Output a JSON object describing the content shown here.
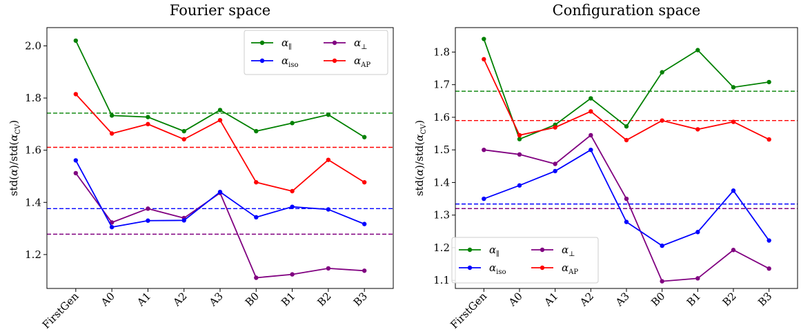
{
  "chart_data": [
    {
      "type": "line",
      "title": "Fourier space",
      "ylabel": "std(α)/std(α_CV)",
      "xlabel": "",
      "categories": [
        "FirstGen",
        "A0",
        "A1",
        "A2",
        "A3",
        "B0",
        "B1",
        "B2",
        "B3"
      ],
      "ylim": [
        1.07,
        2.07
      ],
      "yticks": [
        "1.2",
        "1.4",
        "1.6",
        "1.8",
        "2.0"
      ],
      "legend_position": "top-right",
      "grid": false,
      "series": [
        {
          "name": "α_∥",
          "name_main": "α",
          "name_sub": "∥",
          "color": "#008000",
          "values": [
            2.02,
            1.733,
            1.727,
            1.673,
            1.754,
            1.673,
            1.704,
            1.736,
            1.65
          ],
          "reference": 1.742
        },
        {
          "name": "α_⊥",
          "name_main": "α",
          "name_sub": "⊥",
          "color": "#800080",
          "values": [
            1.512,
            1.323,
            1.376,
            1.34,
            1.436,
            1.111,
            1.124,
            1.147,
            1.138
          ],
          "reference": 1.278
        },
        {
          "name": "α_iso",
          "name_main": "α",
          "name_sub": "iso",
          "color": "#0000ff",
          "values": [
            1.561,
            1.305,
            1.33,
            1.331,
            1.44,
            1.343,
            1.383,
            1.373,
            1.317
          ],
          "reference": 1.376
        },
        {
          "name": "α_AP",
          "name_main": "α",
          "name_sub": "AP",
          "color": "#ff0000",
          "values": [
            1.815,
            1.664,
            1.7,
            1.642,
            1.715,
            1.477,
            1.443,
            1.563,
            1.477
          ],
          "reference": 1.611
        }
      ]
    },
    {
      "type": "line",
      "title": "Configuration space",
      "ylabel": "std(α)/std(α_CV)",
      "xlabel": "",
      "categories": [
        "FirstGen",
        "A0",
        "A1",
        "A2",
        "A3",
        "B0",
        "B1",
        "B2",
        "B3"
      ],
      "ylim": [
        1.075,
        1.875
      ],
      "yticks": [
        "1.1",
        "1.2",
        "1.3",
        "1.4",
        "1.5",
        "1.6",
        "1.7",
        "1.8"
      ],
      "legend_position": "bottom-left",
      "grid": false,
      "series": [
        {
          "name": "α_∥",
          "name_main": "α",
          "name_sub": "∥",
          "color": "#008000",
          "values": [
            1.84,
            1.533,
            1.577,
            1.658,
            1.572,
            1.738,
            1.806,
            1.692,
            1.708
          ],
          "reference": 1.68
        },
        {
          "name": "α_⊥",
          "name_main": "α",
          "name_sub": "⊥",
          "color": "#800080",
          "values": [
            1.5,
            1.486,
            1.457,
            1.545,
            1.35,
            1.097,
            1.106,
            1.193,
            1.136
          ],
          "reference": 1.32
        },
        {
          "name": "α_iso",
          "name_main": "α",
          "name_sub": "iso",
          "color": "#0000ff",
          "values": [
            1.35,
            1.391,
            1.435,
            1.5,
            1.279,
            1.206,
            1.248,
            1.375,
            1.222
          ],
          "reference": 1.334
        },
        {
          "name": "α_AP",
          "name_main": "α",
          "name_sub": "AP",
          "color": "#ff0000",
          "values": [
            1.778,
            1.545,
            1.569,
            1.618,
            1.53,
            1.59,
            1.563,
            1.586,
            1.532
          ],
          "reference": 1.59
        }
      ]
    }
  ]
}
